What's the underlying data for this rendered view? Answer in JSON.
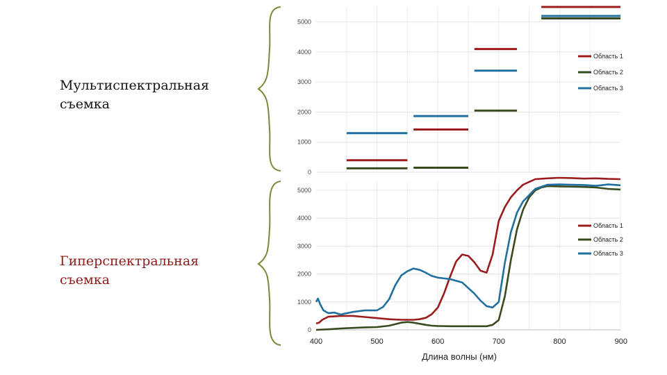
{
  "labels": {
    "multispectral": "Мультиспектральная съемка",
    "hyperspectral": "Гиперспектральная съемка"
  },
  "colors": {
    "area1": "#9b1c1c",
    "area2": "#3a4a1f",
    "area3": "#1f6f9f",
    "brace": "#7a8a3a",
    "multispectral_label": "#111111",
    "hyperspectral_label": "#8e1a1a"
  },
  "chart_data": [
    {
      "type": "line",
      "style": "step-segments",
      "ylim": [
        0,
        5500
      ],
      "yticks": [
        0,
        1000,
        2000,
        3000,
        4000,
        5000
      ],
      "xlim": [
        400,
        900
      ],
      "legend_position": "right",
      "grid": true,
      "bands": [
        [
          450,
          550
        ],
        [
          560,
          650
        ],
        [
          660,
          730
        ],
        [
          770,
          900
        ]
      ],
      "series": [
        {
          "name": "Область 1",
          "color": "#9b1c1c",
          "values": [
            400,
            1420,
            4100,
            5500
          ]
        },
        {
          "name": "Область 2",
          "color": "#3a4a1f",
          "values": [
            130,
            150,
            2050,
            5120
          ]
        },
        {
          "name": "Область 3",
          "color": "#1f6f9f",
          "values": [
            1300,
            1870,
            3380,
            5200
          ]
        }
      ]
    },
    {
      "type": "line",
      "xlim": [
        400,
        900
      ],
      "ylim": [
        0,
        5300
      ],
      "xticks": [
        400,
        500,
        600,
        700,
        800,
        900
      ],
      "yticks": [
        0,
        1000,
        2000,
        3000,
        4000,
        5000
      ],
      "xlabel": "Длина волны (нм)",
      "legend_position": "right",
      "grid": true,
      "series": [
        {
          "name": "Область 1",
          "color": "#9b1c1c",
          "x": [
            400,
            405,
            410,
            420,
            440,
            460,
            480,
            500,
            520,
            540,
            560,
            570,
            580,
            590,
            600,
            610,
            620,
            630,
            640,
            650,
            660,
            670,
            680,
            690,
            700,
            710,
            720,
            730,
            740,
            760,
            780,
            800,
            820,
            840,
            860,
            880,
            900
          ],
          "y": [
            230,
            260,
            360,
            470,
            500,
            500,
            460,
            420,
            380,
            360,
            360,
            380,
            430,
            560,
            800,
            1300,
            1900,
            2450,
            2700,
            2650,
            2420,
            2120,
            2050,
            2700,
            3900,
            4400,
            4750,
            5000,
            5200,
            5400,
            5430,
            5450,
            5440,
            5420,
            5430,
            5410,
            5400
          ]
        },
        {
          "name": "Область 2",
          "color": "#3a4a1f",
          "x": [
            400,
            420,
            440,
            460,
            480,
            500,
            520,
            540,
            550,
            560,
            570,
            580,
            590,
            600,
            620,
            640,
            660,
            680,
            690,
            700,
            710,
            720,
            730,
            740,
            750,
            760,
            770,
            780,
            800,
            820,
            840,
            860,
            880,
            900
          ],
          "y": [
            0,
            20,
            50,
            70,
            90,
            100,
            150,
            260,
            280,
            260,
            220,
            180,
            150,
            140,
            130,
            130,
            130,
            130,
            180,
            350,
            1200,
            2500,
            3600,
            4300,
            4750,
            5000,
            5100,
            5150,
            5140,
            5130,
            5120,
            5100,
            5050,
            5030
          ]
        },
        {
          "name": "Область 3",
          "color": "#1f6f9f",
          "x": [
            400,
            403,
            407,
            412,
            420,
            430,
            440,
            460,
            480,
            500,
            510,
            520,
            530,
            540,
            550,
            560,
            570,
            580,
            590,
            600,
            620,
            640,
            660,
            670,
            680,
            690,
            700,
            710,
            720,
            730,
            740,
            760,
            780,
            800,
            820,
            840,
            860,
            880,
            900
          ],
          "y": [
            1000,
            1120,
            900,
            700,
            600,
            620,
            550,
            640,
            700,
            700,
            820,
            1100,
            1600,
            1950,
            2100,
            2200,
            2150,
            2050,
            1930,
            1870,
            1820,
            1700,
            1300,
            1050,
            850,
            800,
            1000,
            2400,
            3500,
            4200,
            4600,
            5050,
            5200,
            5210,
            5200,
            5190,
            5160,
            5210,
            5180
          ]
        }
      ]
    }
  ]
}
